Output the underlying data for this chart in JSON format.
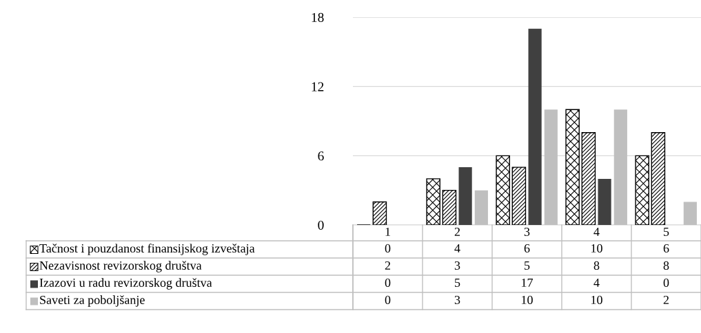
{
  "chart_data": {
    "type": "bar",
    "categories": [
      "1",
      "2",
      "3",
      "4",
      "5"
    ],
    "series": [
      {
        "name": "Tačnost i pouzdanost finansijskog izveštaja",
        "color": "#000000",
        "values": [
          0,
          4,
          6,
          10,
          6
        ]
      },
      {
        "name": "Nezavisnost revizorskog društva",
        "color": "#000000",
        "values": [
          2,
          3,
          5,
          8,
          8
        ]
      },
      {
        "name": "Izazovi u radu revizorskog društva",
        "color": "#404040",
        "values": [
          0,
          5,
          17,
          4,
          0
        ]
      },
      {
        "name": "Saveti za poboljšanje",
        "color": "#bfbfbf",
        "values": [
          0,
          3,
          10,
          10,
          2
        ]
      }
    ],
    "ylim": [
      0,
      18
    ],
    "yticks": [
      0,
      6,
      12,
      18
    ],
    "grid": "y",
    "legend": "bottom",
    "data_labels": true
  }
}
